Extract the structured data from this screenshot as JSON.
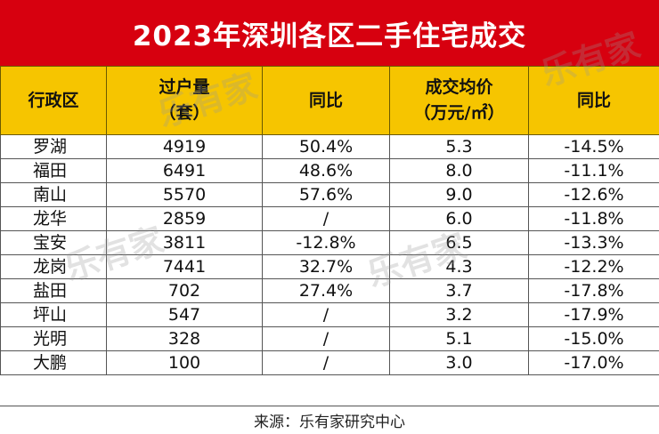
{
  "title": "2023年深圳各区二手住宅成交",
  "headers": [
    "行政区",
    "过户量",
    "（套）",
    "同比",
    "成交均价",
    "（万元/㎡）",
    "同比"
  ],
  "rows": [
    [
      "罗湖",
      "4919",
      "50.4%",
      "5.3",
      "-14.5%"
    ],
    [
      "福田",
      "6491",
      "48.6%",
      "8.0",
      "-11.1%"
    ],
    [
      "南山",
      "5570",
      "57.6%",
      "9.0",
      "-12.6%"
    ],
    [
      "龙华",
      "2859",
      "/",
      "6.0",
      "-11.8%"
    ],
    [
      "宝安",
      "3811",
      "-12.8%",
      "6.5",
      "-13.3%"
    ],
    [
      "龙岗",
      "7441",
      "32.7%",
      "4.3",
      "-12.2%"
    ],
    [
      "盐田",
      "702",
      "27.4%",
      "3.7",
      "-17.8%"
    ],
    [
      "坪山",
      "547",
      "/",
      "3.2",
      "-17.9%"
    ],
    [
      "光明",
      "328",
      "/",
      "5.1",
      "-15.0%"
    ],
    [
      "大鹏",
      "100",
      "/",
      "3.0",
      "-17.0%"
    ]
  ],
  "footer": "来源：乐有家研究中心",
  "watermark": "乐有家"
}
